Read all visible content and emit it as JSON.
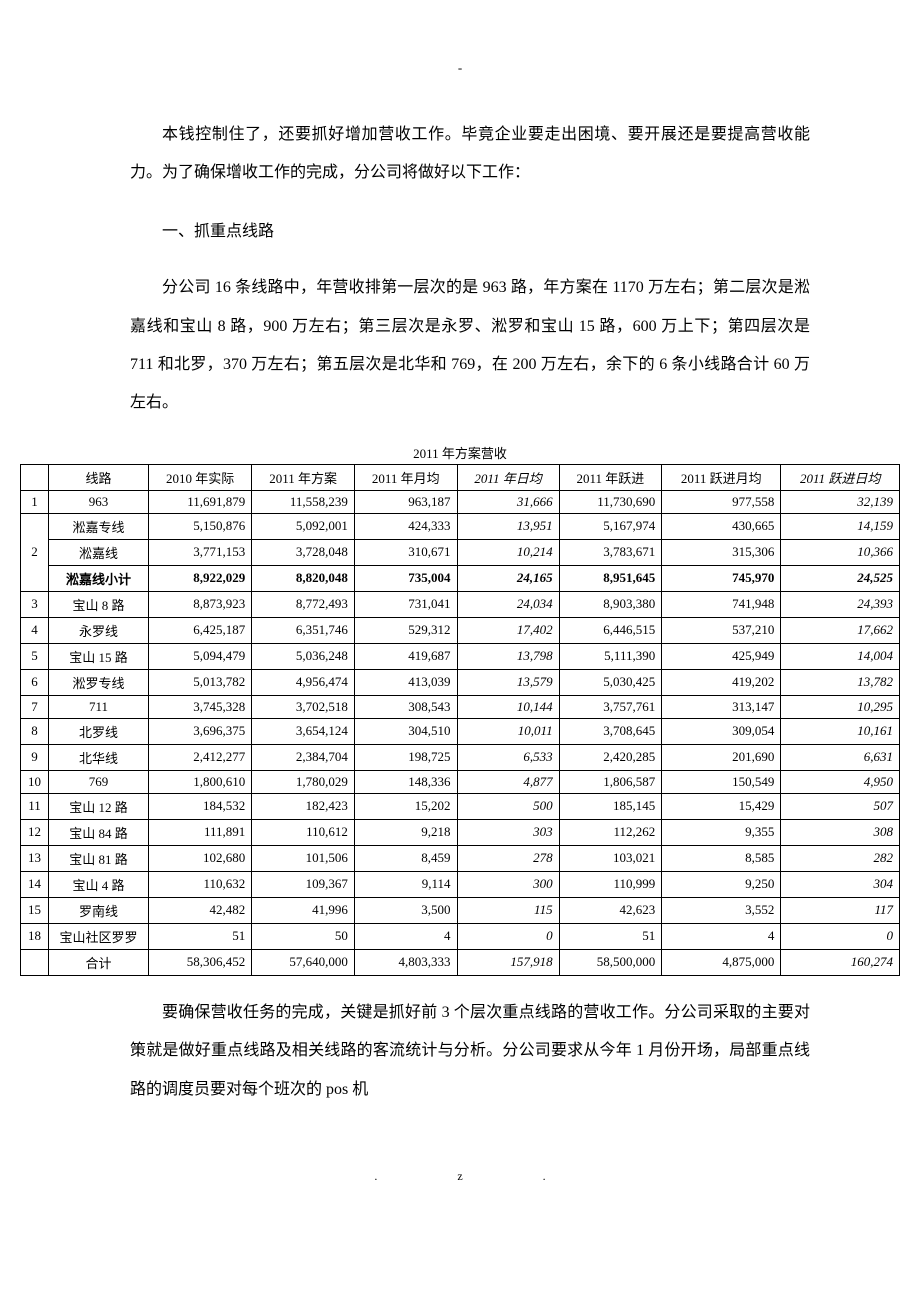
{
  "top_dash": "-",
  "para1": "本钱控制住了，还要抓好增加营收工作。毕竟企业要走出困境、要开展还是要提高营收能力。为了确保增收工作的完成，分公司将做好以下工作：",
  "heading1": "一、抓重点线路",
  "para2": "分公司 16 条线路中，年营收排第一层次的是 963 路，年方案在 1170 万左右；第二层次是淞嘉线和宝山 8 路，900 万左右；第三层次是永罗、淞罗和宝山 15 路，600 万上下；第四层次是 711 和北罗，370 万左右；第五层次是北华和 769，在 200 万左右，余下的 6 条小线路合计 60 万左右。",
  "table": {
    "title": "2011 年方案营收",
    "columns": [
      "",
      "线路",
      "2010 年实际",
      "2011 年方案",
      "2011 年月均",
      "2011 年日均",
      "2011 年跃进",
      "2011 跃进月均",
      "2011 跃进日均"
    ],
    "italic_cols": [
      5,
      8
    ],
    "rows": [
      {
        "idx": "1",
        "route": "963",
        "vals": [
          "11,691,879",
          "11,558,239",
          "963,187",
          "31,666",
          "11,730,690",
          "977,558",
          "32,139"
        ],
        "rowspan": 1
      },
      {
        "idx": "2",
        "route": "淞嘉专线",
        "vals": [
          "5,150,876",
          "5,092,001",
          "424,333",
          "13,951",
          "5,167,974",
          "430,665",
          "14,159"
        ],
        "rowspan_start": 3
      },
      {
        "idx": "",
        "route": "淞嘉线",
        "vals": [
          "3,771,153",
          "3,728,048",
          "310,671",
          "10,214",
          "3,783,671",
          "315,306",
          "10,366"
        ],
        "grouped": true
      },
      {
        "idx": "",
        "route": "淞嘉线小计",
        "vals": [
          "8,922,029",
          "8,820,048",
          "735,004",
          "24,165",
          "8,951,645",
          "745,970",
          "24,525"
        ],
        "grouped": true,
        "bold": true
      },
      {
        "idx": "3",
        "route": "宝山 8 路",
        "vals": [
          "8,873,923",
          "8,772,493",
          "731,041",
          "24,034",
          "8,903,380",
          "741,948",
          "24,393"
        ]
      },
      {
        "idx": "4",
        "route": "永罗线",
        "vals": [
          "6,425,187",
          "6,351,746",
          "529,312",
          "17,402",
          "6,446,515",
          "537,210",
          "17,662"
        ]
      },
      {
        "idx": "5",
        "route": "宝山 15 路",
        "vals": [
          "5,094,479",
          "5,036,248",
          "419,687",
          "13,798",
          "5,111,390",
          "425,949",
          "14,004"
        ]
      },
      {
        "idx": "6",
        "route": "淞罗专线",
        "vals": [
          "5,013,782",
          "4,956,474",
          "413,039",
          "13,579",
          "5,030,425",
          "419,202",
          "13,782"
        ]
      },
      {
        "idx": "7",
        "route": "711",
        "vals": [
          "3,745,328",
          "3,702,518",
          "308,543",
          "10,144",
          "3,757,761",
          "313,147",
          "10,295"
        ]
      },
      {
        "idx": "8",
        "route": "北罗线",
        "vals": [
          "3,696,375",
          "3,654,124",
          "304,510",
          "10,011",
          "3,708,645",
          "309,054",
          "10,161"
        ]
      },
      {
        "idx": "9",
        "route": "北华线",
        "vals": [
          "2,412,277",
          "2,384,704",
          "198,725",
          "6,533",
          "2,420,285",
          "201,690",
          "6,631"
        ]
      },
      {
        "idx": "10",
        "route": "769",
        "vals": [
          "1,800,610",
          "1,780,029",
          "148,336",
          "4,877",
          "1,806,587",
          "150,549",
          "4,950"
        ]
      },
      {
        "idx": "11",
        "route": "宝山 12 路",
        "vals": [
          "184,532",
          "182,423",
          "15,202",
          "500",
          "185,145",
          "15,429",
          "507"
        ]
      },
      {
        "idx": "12",
        "route": "宝山 84 路",
        "vals": [
          "111,891",
          "110,612",
          "9,218",
          "303",
          "112,262",
          "9,355",
          "308"
        ]
      },
      {
        "idx": "13",
        "route": "宝山 81 路",
        "vals": [
          "102,680",
          "101,506",
          "8,459",
          "278",
          "103,021",
          "8,585",
          "282"
        ]
      },
      {
        "idx": "14",
        "route": "宝山 4 路",
        "vals": [
          "110,632",
          "109,367",
          "9,114",
          "300",
          "110,999",
          "9,250",
          "304"
        ]
      },
      {
        "idx": "15",
        "route": "罗南线",
        "vals": [
          "42,482",
          "41,996",
          "3,500",
          "115",
          "42,623",
          "3,552",
          "117"
        ]
      },
      {
        "idx": "18",
        "route": "宝山社区罗罗",
        "vals": [
          "51",
          "50",
          "4",
          "0",
          "51",
          "4",
          "0"
        ]
      },
      {
        "idx": "",
        "route": "合计",
        "vals": [
          "58,306,452",
          "57,640,000",
          "4,803,333",
          "157,918",
          "58,500,000",
          "4,875,000",
          "160,274"
        ]
      }
    ]
  },
  "para3": "要确保营收任务的完成，关键是抓好前 3 个层次重点线路的营收工作。分公司采取的主要对策就是做好重点线路及相关线路的客流统计与分析。分公司要求从今年 1 月份开场，局部重点线路的调度员要对每个班次的 pos 机",
  "footer_left": ".",
  "footer_right": "z."
}
